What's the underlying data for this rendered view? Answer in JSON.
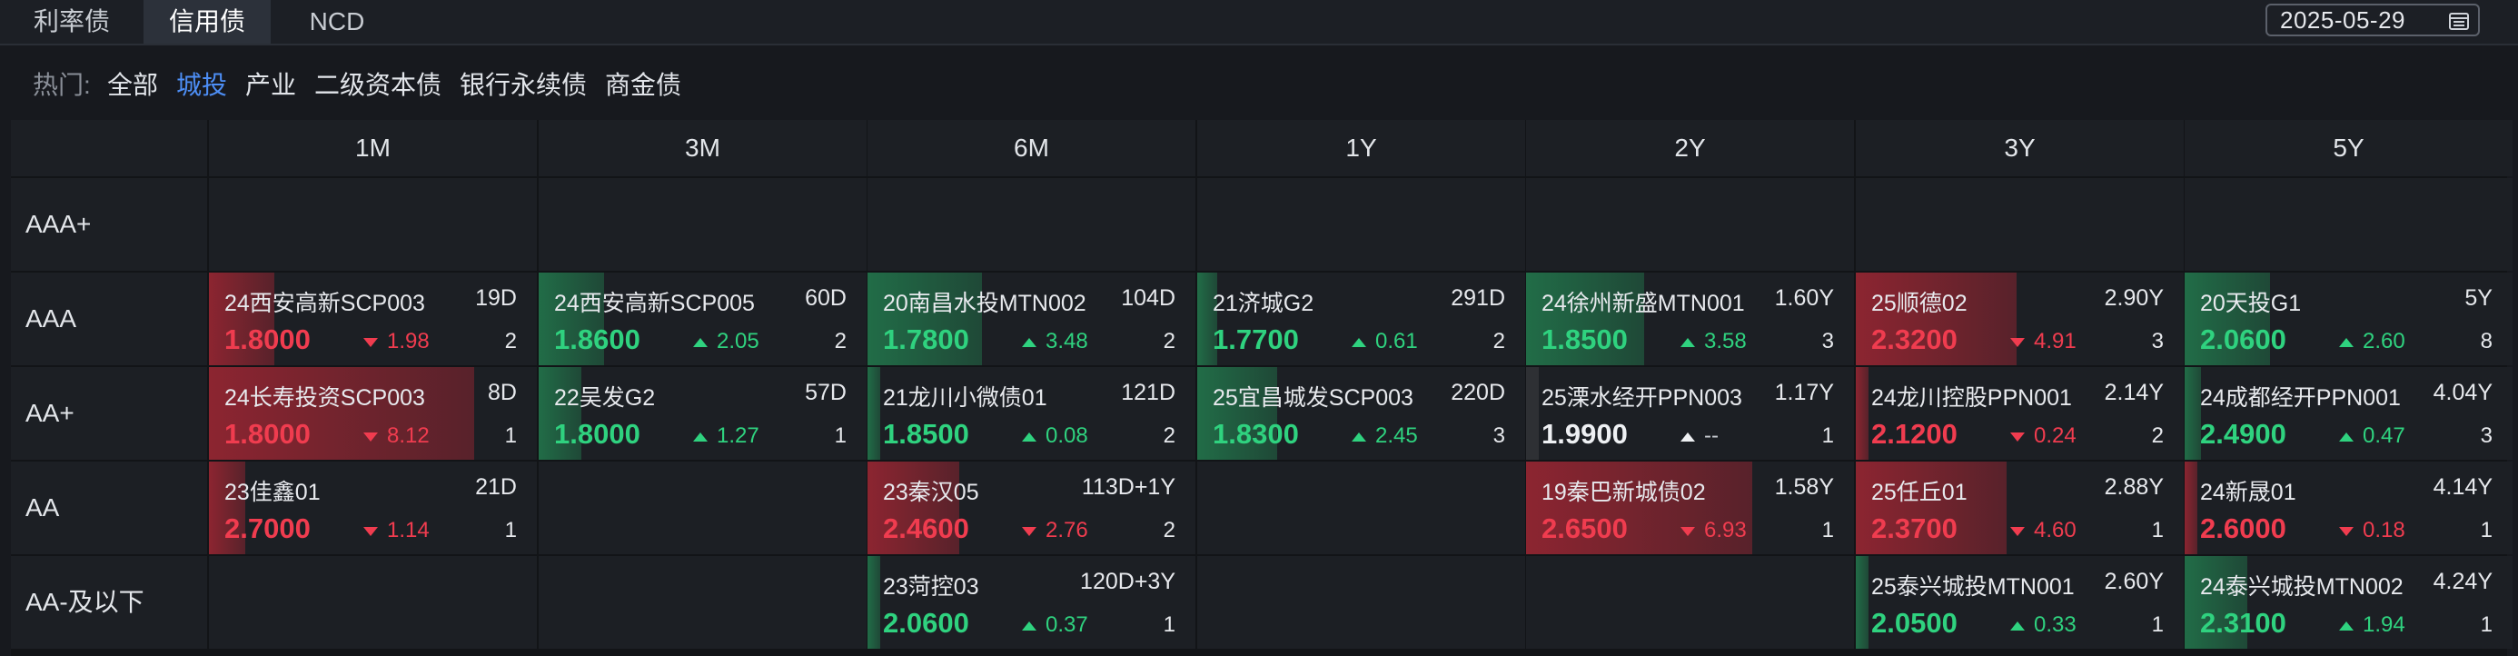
{
  "tabs": [
    {
      "label": "利率债",
      "active": false
    },
    {
      "label": "信用债",
      "active": true
    },
    {
      "label": "NCD",
      "active": false
    }
  ],
  "date": {
    "value": "2025-05-29",
    "icon": "calendar-icon"
  },
  "hot": {
    "label": "热门:",
    "items": [
      {
        "label": "全部",
        "selected": false
      },
      {
        "label": "城投",
        "selected": true
      },
      {
        "label": "产业",
        "selected": false
      },
      {
        "label": "二级资本债",
        "selected": false
      },
      {
        "label": "银行永续债",
        "selected": false
      },
      {
        "label": "商金债",
        "selected": false
      }
    ]
  },
  "colors": {
    "up": "#2fd27f",
    "down": "#f03c4f",
    "accent": "#4d8ef5"
  },
  "columns": [
    "1M",
    "3M",
    "6M",
    "1Y",
    "2Y",
    "3Y",
    "5Y"
  ],
  "rows": [
    {
      "rating": "AAA+",
      "cells": [
        null,
        null,
        null,
        null,
        null,
        null,
        null
      ]
    },
    {
      "rating": "AAA",
      "cells": [
        {
          "name": "24西安高新SCP003",
          "term": "19D",
          "rate": "1.8000",
          "dir": "down",
          "chg": "1.98",
          "count": "2",
          "strength": 0.2
        },
        {
          "name": "24西安高新SCP005",
          "term": "60D",
          "rate": "1.8600",
          "dir": "up",
          "chg": "2.05",
          "count": "2",
          "strength": 0.2
        },
        {
          "name": "20南昌水投MTN002",
          "term": "104D",
          "rate": "1.7800",
          "dir": "up",
          "chg": "3.48",
          "count": "2",
          "strength": 0.35
        },
        {
          "name": "21济城G2",
          "term": "291D",
          "rate": "1.7700",
          "dir": "up",
          "chg": "0.61",
          "count": "2",
          "strength": 0.06
        },
        {
          "name": "24徐州新盛MTN001",
          "term": "1.60Y",
          "rate": "1.8500",
          "dir": "up",
          "chg": "3.58",
          "count": "3",
          "strength": 0.36
        },
        {
          "name": "25顺德02",
          "term": "2.90Y",
          "rate": "2.3200",
          "dir": "down",
          "chg": "4.91",
          "count": "3",
          "strength": 0.49
        },
        {
          "name": "20天投G1",
          "term": "5Y",
          "rate": "2.0600",
          "dir": "up",
          "chg": "2.60",
          "count": "8",
          "strength": 0.26
        }
      ]
    },
    {
      "rating": "AA+",
      "cells": [
        {
          "name": "24长寿投资SCP003",
          "term": "8D",
          "rate": "1.8000",
          "dir": "down",
          "chg": "8.12",
          "count": "1",
          "strength": 0.81
        },
        {
          "name": "22吴发G2",
          "term": "57D",
          "rate": "1.8000",
          "dir": "up",
          "chg": "1.27",
          "count": "1",
          "strength": 0.13
        },
        {
          "name": "21龙川小微债01",
          "term": "121D",
          "rate": "1.8500",
          "dir": "up",
          "chg": "0.08",
          "count": "2",
          "strength": 0.02
        },
        {
          "name": "25宜昌城发SCP003",
          "term": "220D",
          "rate": "1.8300",
          "dir": "up",
          "chg": "2.45",
          "count": "3",
          "strength": 0.245
        },
        {
          "name": "25溧水经开PPN003",
          "term": "1.17Y",
          "rate": "1.9900",
          "dir": "flat",
          "chg": "--",
          "count": "1",
          "strength": 0
        },
        {
          "name": "24龙川控股PPN001",
          "term": "2.14Y",
          "rate": "2.1200",
          "dir": "down",
          "chg": "0.24",
          "count": "2",
          "strength": 0.03
        },
        {
          "name": "24成都经开PPN001",
          "term": "4.04Y",
          "rate": "2.4900",
          "dir": "up",
          "chg": "0.47",
          "count": "3",
          "strength": 0.05
        }
      ]
    },
    {
      "rating": "AA",
      "cells": [
        {
          "name": "23佳鑫01",
          "term": "21D",
          "rate": "2.7000",
          "dir": "down",
          "chg": "1.14",
          "count": "1",
          "strength": 0.11
        },
        null,
        {
          "name": "23秦汉05",
          "term": "113D+1Y",
          "rate": "2.4600",
          "dir": "down",
          "chg": "2.76",
          "count": "2",
          "strength": 0.28
        },
        null,
        {
          "name": "19秦巴新城债02",
          "term": "1.58Y",
          "rate": "2.6500",
          "dir": "down",
          "chg": "6.93",
          "count": "1",
          "strength": 0.69
        },
        {
          "name": "25任丘01",
          "term": "2.88Y",
          "rate": "2.3700",
          "dir": "down",
          "chg": "4.60",
          "count": "1",
          "strength": 0.46
        },
        {
          "name": "24新晟01",
          "term": "4.14Y",
          "rate": "2.6000",
          "dir": "down",
          "chg": "0.18",
          "count": "1",
          "strength": 0.02
        }
      ]
    },
    {
      "rating": "AA-及以下",
      "cells": [
        null,
        null,
        {
          "name": "23菏控03",
          "term": "120D+3Y",
          "rate": "2.0600",
          "dir": "up",
          "chg": "0.37",
          "count": "1",
          "strength": 0.04
        },
        null,
        null,
        {
          "name": "25泰兴城投MTN001",
          "term": "2.60Y",
          "rate": "2.0500",
          "dir": "up",
          "chg": "0.33",
          "count": "1",
          "strength": 0.03
        },
        {
          "name": "24泰兴城投MTN002",
          "term": "4.24Y",
          "rate": "2.3100",
          "dir": "up",
          "chg": "1.94",
          "count": "1",
          "strength": 0.19
        }
      ]
    }
  ]
}
